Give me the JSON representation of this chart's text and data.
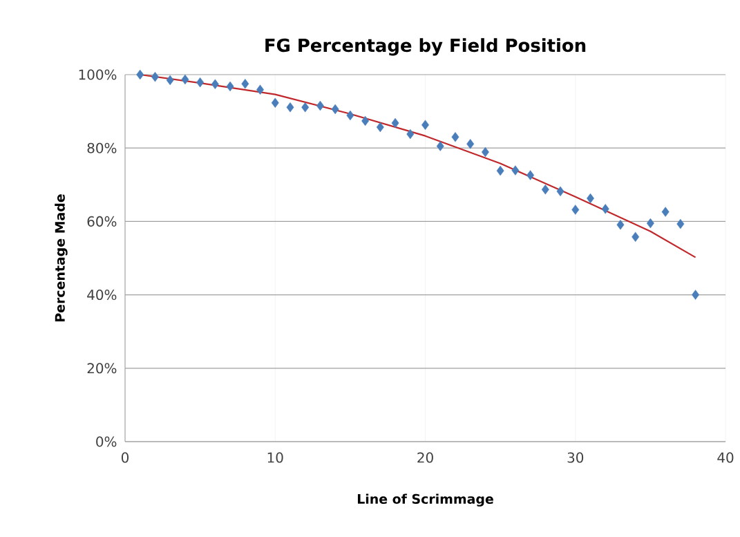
{
  "chart_data": {
    "type": "scatter",
    "title": "FG Percentage by Field Position",
    "xlabel": "Line of Scrimmage",
    "ylabel": "Percentage Made",
    "grid": true,
    "xlim": [
      0,
      40
    ],
    "xticks": [
      0,
      10,
      20,
      30,
      40
    ],
    "ylim": [
      0,
      100
    ],
    "yticks": [
      {
        "value": 0,
        "label": "0%"
      },
      {
        "value": 20,
        "label": "20%"
      },
      {
        "value": 40,
        "label": "40%"
      },
      {
        "value": 60,
        "label": "60%"
      },
      {
        "value": 80,
        "label": "80%"
      },
      {
        "value": 100,
        "label": "100%"
      }
    ],
    "series": [
      {
        "marker": "diamond",
        "color": "#4a7ebb",
        "x": [
          1,
          2,
          3,
          4,
          5,
          6,
          7,
          8,
          9,
          10,
          11,
          12,
          13,
          14,
          15,
          16,
          17,
          18,
          19,
          20,
          21,
          22,
          23,
          24,
          25,
          26,
          27,
          28,
          29,
          30,
          31,
          32,
          33,
          34,
          35,
          36,
          37,
          38
        ],
        "values": [
          100,
          99.4,
          98.5,
          98.7,
          97.9,
          97.4,
          96.8,
          97.5,
          95.9,
          92.3,
          91.1,
          91.1,
          91.5,
          90.6,
          88.9,
          87.4,
          85.7,
          86.8,
          83.8,
          86.3,
          80.5,
          83.0,
          81.1,
          78.9,
          73.8,
          73.9,
          72.6,
          68.7,
          68.2,
          63.2,
          66.3,
          63.4,
          59.1,
          55.8,
          59.5,
          62.6,
          59.3,
          40.0
        ]
      },
      {
        "type": "line",
        "marker": "none",
        "color": "#c0282b",
        "x": [
          1,
          5,
          10,
          15,
          20,
          25,
          30,
          35,
          38
        ],
        "values": [
          100,
          97.7,
          94.6,
          89.3,
          83.3,
          75.8,
          66.7,
          57.3,
          50.2
        ]
      }
    ]
  }
}
